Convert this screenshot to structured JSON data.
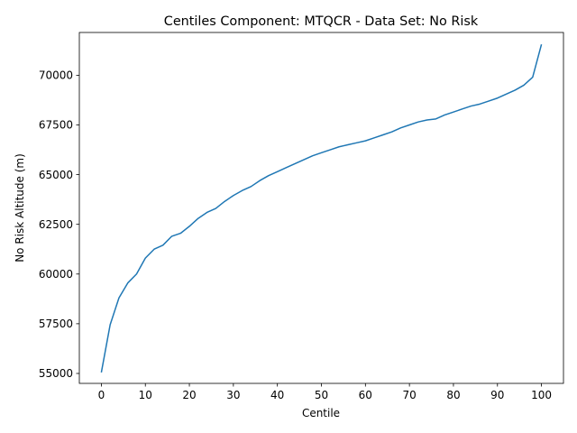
{
  "chart_data": {
    "type": "line",
    "title": "Centiles Component: MTQCR - Data Set: No Risk",
    "xlabel": "Centile",
    "ylabel": "No Risk Altitude (m)",
    "xlim": [
      -5,
      105
    ],
    "ylim": [
      54500,
      72150
    ],
    "xticks": [
      0,
      10,
      20,
      30,
      40,
      50,
      60,
      70,
      80,
      90,
      100
    ],
    "yticks": [
      55000,
      57500,
      60000,
      62500,
      65000,
      67500,
      70000
    ],
    "grid": false,
    "line_color": "#1f77b4",
    "series": [
      {
        "x": [
          0,
          2,
          4,
          6,
          8,
          10,
          12,
          14,
          16,
          18,
          20,
          22,
          24,
          26,
          28,
          30,
          32,
          34,
          36,
          38,
          40,
          42,
          44,
          46,
          48,
          50,
          52,
          54,
          56,
          58,
          60,
          62,
          64,
          66,
          68,
          70,
          72,
          74,
          76,
          78,
          80,
          82,
          84,
          86,
          88,
          90,
          92,
          94,
          96,
          98,
          100
        ],
        "values": [
          55050,
          57450,
          58800,
          59550,
          60000,
          60800,
          61250,
          61450,
          61900,
          62050,
          62400,
          62800,
          63100,
          63300,
          63650,
          63950,
          64200,
          64400,
          64700,
          64950,
          65150,
          65350,
          65550,
          65750,
          65950,
          66100,
          66250,
          66400,
          66500,
          66600,
          66700,
          66850,
          67000,
          67150,
          67350,
          67500,
          67650,
          67750,
          67800,
          68000,
          68150,
          68300,
          68450,
          68550,
          68700,
          68850,
          69050,
          69250,
          69500,
          69900,
          71550
        ]
      }
    ]
  }
}
